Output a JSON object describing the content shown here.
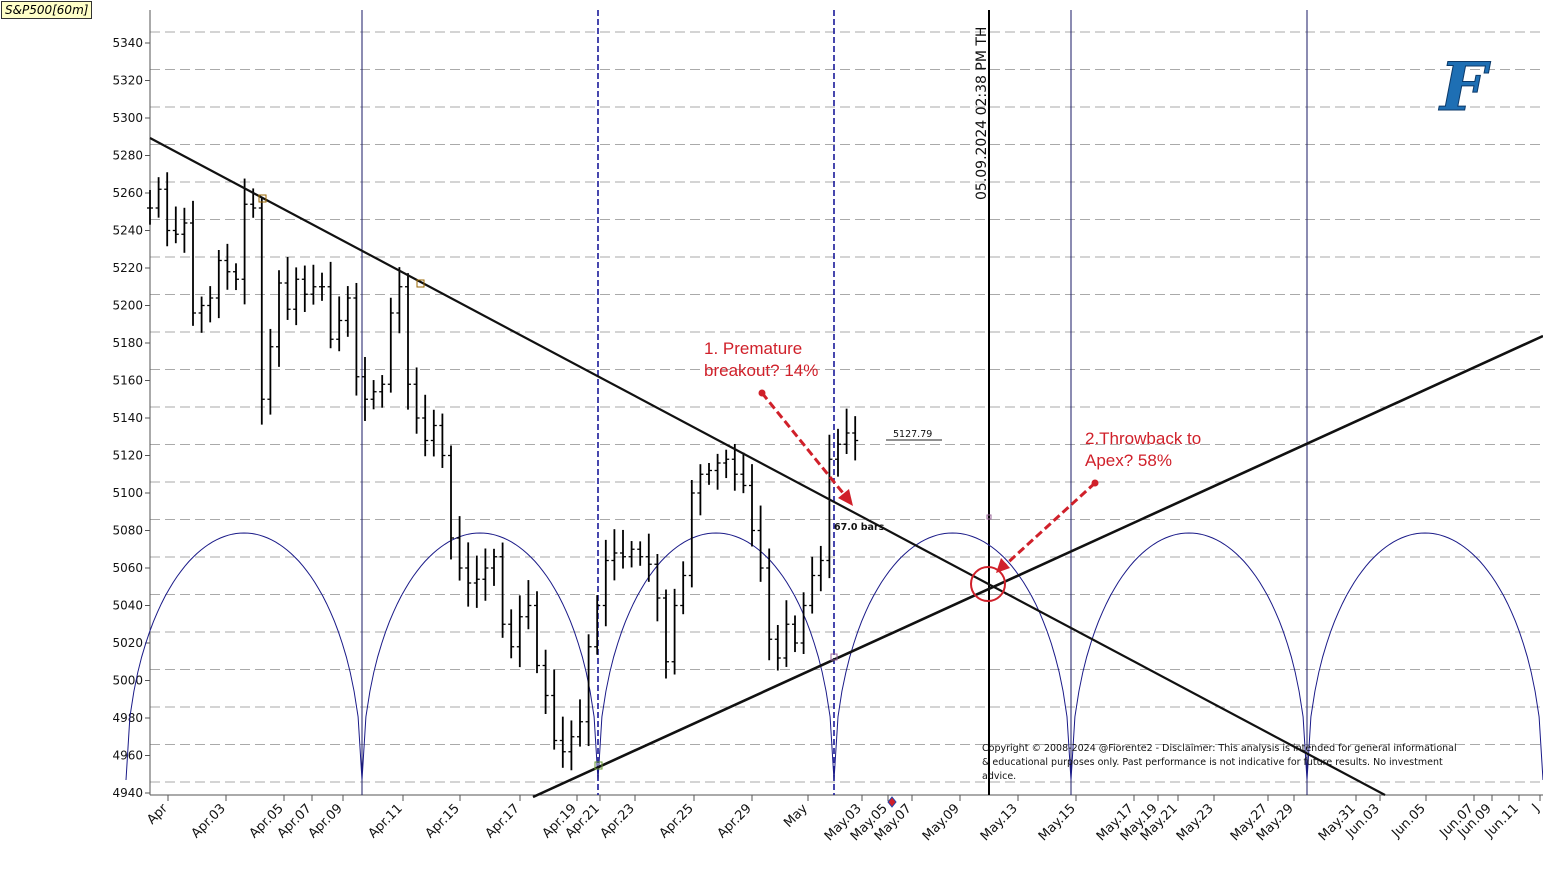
{
  "chart_data": {
    "type": "candlestick",
    "symbol": "S&P500[60m]",
    "y_axis": {
      "range": [
        4938,
        5358
      ],
      "ticks": [
        4940,
        4960,
        4980,
        5000,
        5020,
        5040,
        5060,
        5080,
        5100,
        5120,
        5140,
        5160,
        5180,
        5200,
        5220,
        5240,
        5260,
        5280,
        5300,
        5320,
        5340
      ]
    },
    "x_ticks": [
      "Apr",
      "Apr.03",
      "Apr.05",
      "Apr.07",
      "Apr.09",
      "Apr.11",
      "Apr.15",
      "Apr.17",
      "Apr.19",
      "Apr.21",
      "Apr.23",
      "Apr.25",
      "Apr.29",
      "May",
      "May.03",
      "May.05",
      "May.07",
      "May.09",
      "May.13",
      "May.15",
      "May.17",
      "May.19",
      "May.21",
      "May.23",
      "May.27",
      "May.29",
      "May.31",
      "Jun.03",
      "Jun.05",
      "Jun.07",
      "Jun.09",
      "Jun.11",
      "J"
    ],
    "price_path": [
      [
        0,
        5252
      ],
      [
        2,
        5262
      ],
      [
        4,
        5240
      ],
      [
        6,
        5238
      ],
      [
        8,
        5244
      ],
      [
        10,
        5196
      ],
      [
        12,
        5200
      ],
      [
        14,
        5204
      ],
      [
        16,
        5224
      ],
      [
        18,
        5218
      ],
      [
        20,
        5214
      ],
      [
        22,
        5254
      ],
      [
        24,
        5252
      ],
      [
        26,
        5150
      ],
      [
        28,
        5178
      ],
      [
        30,
        5212
      ],
      [
        32,
        5198
      ],
      [
        34,
        5214
      ],
      [
        36,
        5206
      ],
      [
        38,
        5210
      ],
      [
        40,
        5210
      ],
      [
        42,
        5182
      ],
      [
        44,
        5192
      ],
      [
        46,
        5204
      ],
      [
        48,
        5162
      ],
      [
        50,
        5150
      ],
      [
        52,
        5154
      ],
      [
        54,
        5158
      ],
      [
        56,
        5196
      ],
      [
        58,
        5210
      ],
      [
        60,
        5158
      ],
      [
        62,
        5140
      ],
      [
        64,
        5128
      ],
      [
        66,
        5136
      ],
      [
        68,
        5120
      ],
      [
        70,
        5076
      ],
      [
        72,
        5060
      ],
      [
        74,
        5052
      ],
      [
        76,
        5054
      ],
      [
        78,
        5060
      ],
      [
        80,
        5066
      ],
      [
        82,
        5030
      ],
      [
        84,
        5018
      ],
      [
        86,
        5034
      ],
      [
        88,
        5040
      ],
      [
        90,
        5008
      ],
      [
        92,
        4992
      ],
      [
        94,
        4968
      ],
      [
        96,
        4962
      ],
      [
        98,
        4970
      ],
      [
        100,
        4978
      ],
      [
        102,
        5018
      ],
      [
        104,
        5040
      ],
      [
        106,
        5064
      ],
      [
        108,
        5068
      ],
      [
        110,
        5066
      ],
      [
        112,
        5070
      ],
      [
        114,
        5066
      ],
      [
        116,
        5062
      ],
      [
        118,
        5044
      ],
      [
        120,
        5010
      ],
      [
        122,
        5040
      ],
      [
        124,
        5056
      ],
      [
        126,
        5100
      ],
      [
        128,
        5110
      ],
      [
        130,
        5112
      ],
      [
        132,
        5116
      ],
      [
        134,
        5118
      ],
      [
        136,
        5110
      ],
      [
        138,
        5104
      ],
      [
        140,
        5080
      ],
      [
        142,
        5060
      ],
      [
        144,
        5022
      ],
      [
        146,
        5012
      ],
      [
        148,
        5030
      ],
      [
        150,
        5020
      ],
      [
        152,
        5040
      ],
      [
        154,
        5056
      ],
      [
        156,
        5064
      ],
      [
        158,
        5118
      ],
      [
        160,
        5126
      ],
      [
        162,
        5132
      ],
      [
        164,
        5128
      ]
    ],
    "last_price_label": "5127.79",
    "bar_count_label": "67.0 bars",
    "timestamp_label": "05.09.2024  02:38 PM TH",
    "annotations": [
      {
        "text_lines": [
          "1. Premature",
          "breakout? 14%"
        ],
        "color": "#d0202a"
      },
      {
        "text_lines": [
          "2.Throwback to",
          "Apex? 58%"
        ],
        "color": "#d0202a"
      }
    ],
    "trendlines": [
      {
        "name": "descending resistance",
        "from": {
          "x_label": "Apr",
          "y": 5288
        },
        "to": {
          "x_label": "Jun.05",
          "y": 4938
        }
      },
      {
        "name": "ascending support",
        "from": {
          "x_label": "Apr.19",
          "y": 4938
        },
        "to": {
          "x_label": "J",
          "y": 5184
        }
      }
    ],
    "apex": {
      "x_label": "May.09",
      "y": 5049
    },
    "grid": "dashed horizontal lines",
    "legend": "none"
  },
  "logo": {
    "letter": "F",
    "color": "#1e6fb4"
  },
  "copyright": {
    "lines": [
      "Copyright © 2008-2024 @Fiorente2 -  Disclaimer: This analysis is intended for general informational",
      "& educational purposes only. Past performance is not indicative for future results. No investment",
      "advice."
    ]
  }
}
